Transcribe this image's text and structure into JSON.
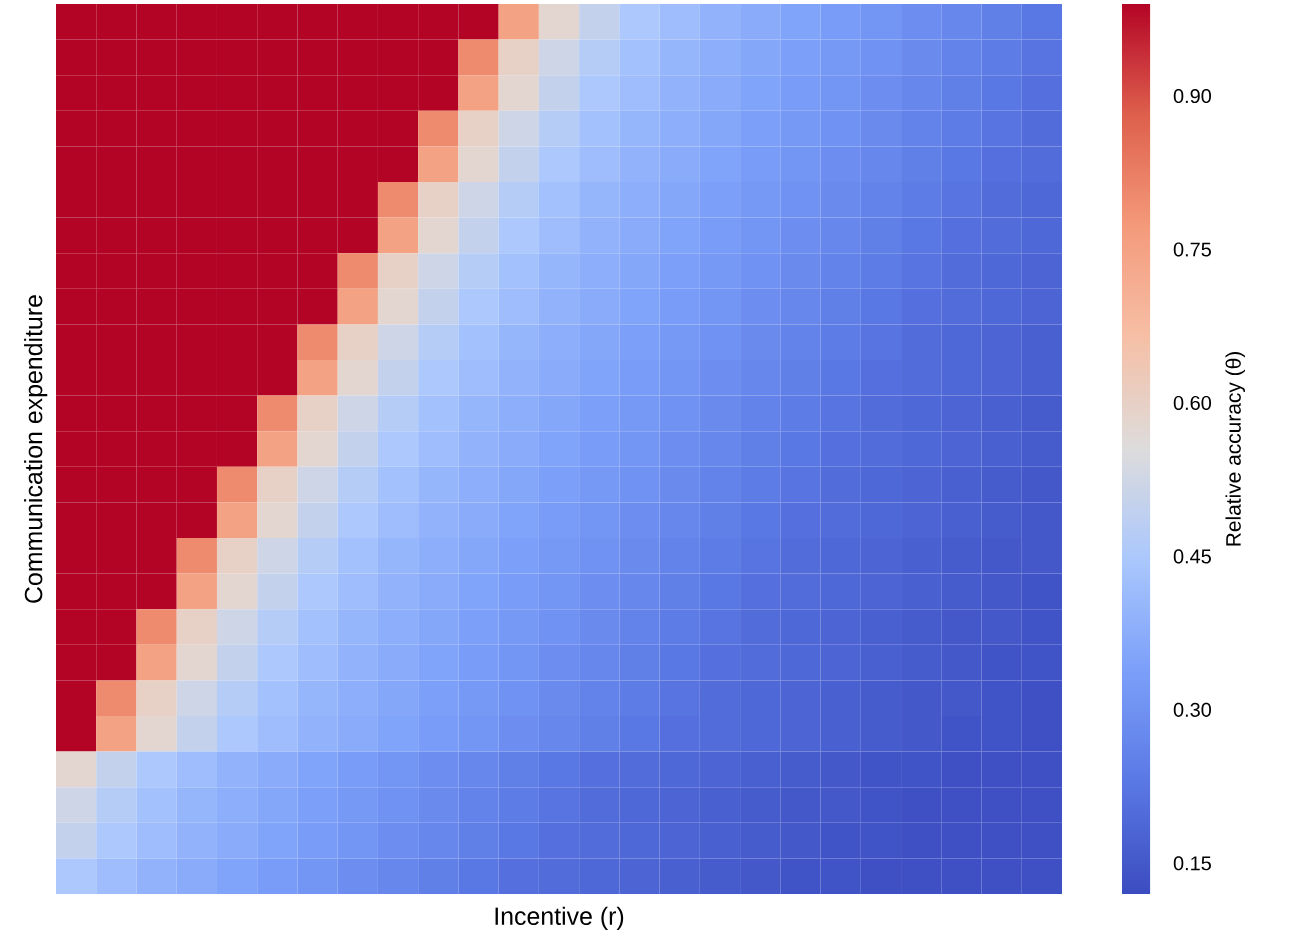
{
  "chart_data": {
    "type": "heatmap",
    "xlabel": "Incentive (r)",
    "ylabel": "Communication expenditure",
    "clabel": "Relative accuracy (θ)",
    "clim": [
      0.12,
      0.99
    ],
    "cticks": [
      {
        "value": 0.15,
        "label": "0.15"
      },
      {
        "value": 0.3,
        "label": "0.30"
      },
      {
        "value": 0.45,
        "label": "0.45"
      },
      {
        "value": 0.6,
        "label": "0.60"
      },
      {
        "value": 0.75,
        "label": "0.75"
      },
      {
        "value": 0.9,
        "label": "0.90"
      }
    ],
    "categories": [
      null,
      null,
      null,
      null,
      null,
      null,
      null,
      null,
      null,
      null,
      null,
      null,
      null,
      null,
      null,
      null,
      null,
      null,
      null,
      null,
      null,
      null,
      null,
      null,
      null
    ],
    "y_categories": [
      null,
      null,
      null,
      null,
      null,
      null,
      null,
      null,
      null,
      null,
      null,
      null,
      null,
      null,
      null,
      null,
      null,
      null,
      null,
      null,
      null,
      null,
      null,
      null,
      null
    ],
    "cells": [
      [
        0.99,
        0.99,
        0.99,
        0.99,
        0.99,
        0.99,
        0.99,
        0.99,
        0.99,
        0.99,
        0.99,
        0.75,
        0.58,
        0.5,
        0.45,
        0.42,
        0.39,
        0.37,
        0.35,
        0.33,
        0.31,
        0.29,
        0.27,
        0.25,
        0.23
      ],
      [
        0.99,
        0.99,
        0.99,
        0.99,
        0.99,
        0.99,
        0.99,
        0.99,
        0.99,
        0.99,
        0.8,
        0.6,
        0.52,
        0.47,
        0.43,
        0.4,
        0.38,
        0.36,
        0.34,
        0.32,
        0.3,
        0.28,
        0.26,
        0.24,
        0.22
      ],
      [
        0.99,
        0.99,
        0.99,
        0.99,
        0.99,
        0.99,
        0.99,
        0.99,
        0.99,
        0.99,
        0.75,
        0.58,
        0.5,
        0.45,
        0.42,
        0.39,
        0.37,
        0.35,
        0.33,
        0.31,
        0.29,
        0.27,
        0.25,
        0.23,
        0.21
      ],
      [
        0.99,
        0.99,
        0.99,
        0.99,
        0.99,
        0.99,
        0.99,
        0.99,
        0.99,
        0.8,
        0.6,
        0.52,
        0.47,
        0.43,
        0.4,
        0.38,
        0.36,
        0.34,
        0.32,
        0.3,
        0.28,
        0.26,
        0.24,
        0.22,
        0.2
      ],
      [
        0.99,
        0.99,
        0.99,
        0.99,
        0.99,
        0.99,
        0.99,
        0.99,
        0.99,
        0.75,
        0.58,
        0.5,
        0.45,
        0.42,
        0.39,
        0.37,
        0.35,
        0.33,
        0.31,
        0.29,
        0.27,
        0.25,
        0.23,
        0.21,
        0.2
      ],
      [
        0.99,
        0.99,
        0.99,
        0.99,
        0.99,
        0.99,
        0.99,
        0.99,
        0.8,
        0.6,
        0.52,
        0.47,
        0.43,
        0.4,
        0.38,
        0.36,
        0.34,
        0.32,
        0.3,
        0.28,
        0.26,
        0.24,
        0.22,
        0.2,
        0.19
      ],
      [
        0.99,
        0.99,
        0.99,
        0.99,
        0.99,
        0.99,
        0.99,
        0.99,
        0.75,
        0.58,
        0.5,
        0.45,
        0.42,
        0.39,
        0.37,
        0.35,
        0.33,
        0.31,
        0.29,
        0.27,
        0.25,
        0.23,
        0.21,
        0.2,
        0.19
      ],
      [
        0.99,
        0.99,
        0.99,
        0.99,
        0.99,
        0.99,
        0.99,
        0.8,
        0.6,
        0.52,
        0.47,
        0.43,
        0.4,
        0.38,
        0.36,
        0.34,
        0.32,
        0.3,
        0.28,
        0.26,
        0.24,
        0.22,
        0.2,
        0.19,
        0.18
      ],
      [
        0.99,
        0.99,
        0.99,
        0.99,
        0.99,
        0.99,
        0.99,
        0.75,
        0.58,
        0.5,
        0.45,
        0.42,
        0.39,
        0.37,
        0.35,
        0.33,
        0.31,
        0.29,
        0.27,
        0.25,
        0.23,
        0.21,
        0.2,
        0.19,
        0.18
      ],
      [
        0.99,
        0.99,
        0.99,
        0.99,
        0.99,
        0.99,
        0.8,
        0.6,
        0.52,
        0.47,
        0.43,
        0.4,
        0.38,
        0.36,
        0.34,
        0.32,
        0.3,
        0.28,
        0.26,
        0.24,
        0.22,
        0.2,
        0.19,
        0.18,
        0.17
      ],
      [
        0.99,
        0.99,
        0.99,
        0.99,
        0.99,
        0.99,
        0.75,
        0.58,
        0.5,
        0.45,
        0.42,
        0.39,
        0.37,
        0.35,
        0.33,
        0.31,
        0.29,
        0.27,
        0.25,
        0.23,
        0.21,
        0.2,
        0.19,
        0.18,
        0.17
      ],
      [
        0.99,
        0.99,
        0.99,
        0.99,
        0.99,
        0.8,
        0.6,
        0.52,
        0.47,
        0.43,
        0.4,
        0.38,
        0.36,
        0.34,
        0.32,
        0.3,
        0.28,
        0.26,
        0.24,
        0.22,
        0.2,
        0.19,
        0.18,
        0.17,
        0.16
      ],
      [
        0.99,
        0.99,
        0.99,
        0.99,
        0.99,
        0.75,
        0.58,
        0.5,
        0.45,
        0.42,
        0.39,
        0.37,
        0.35,
        0.33,
        0.31,
        0.29,
        0.27,
        0.25,
        0.23,
        0.21,
        0.2,
        0.19,
        0.18,
        0.17,
        0.16
      ],
      [
        0.99,
        0.99,
        0.99,
        0.99,
        0.8,
        0.6,
        0.52,
        0.47,
        0.43,
        0.4,
        0.38,
        0.36,
        0.34,
        0.32,
        0.3,
        0.28,
        0.26,
        0.24,
        0.22,
        0.2,
        0.19,
        0.18,
        0.17,
        0.16,
        0.15
      ],
      [
        0.99,
        0.99,
        0.99,
        0.99,
        0.75,
        0.58,
        0.5,
        0.45,
        0.42,
        0.39,
        0.37,
        0.35,
        0.33,
        0.31,
        0.29,
        0.27,
        0.25,
        0.23,
        0.21,
        0.2,
        0.19,
        0.18,
        0.17,
        0.16,
        0.15
      ],
      [
        0.99,
        0.99,
        0.99,
        0.8,
        0.6,
        0.52,
        0.47,
        0.43,
        0.4,
        0.38,
        0.36,
        0.34,
        0.32,
        0.3,
        0.28,
        0.26,
        0.24,
        0.22,
        0.2,
        0.19,
        0.18,
        0.17,
        0.16,
        0.15,
        0.15
      ],
      [
        0.99,
        0.99,
        0.99,
        0.75,
        0.58,
        0.5,
        0.45,
        0.42,
        0.39,
        0.37,
        0.35,
        0.33,
        0.31,
        0.29,
        0.27,
        0.25,
        0.23,
        0.21,
        0.2,
        0.19,
        0.18,
        0.17,
        0.16,
        0.15,
        0.14
      ],
      [
        0.99,
        0.99,
        0.8,
        0.6,
        0.52,
        0.47,
        0.43,
        0.4,
        0.38,
        0.36,
        0.34,
        0.32,
        0.3,
        0.28,
        0.26,
        0.24,
        0.22,
        0.2,
        0.19,
        0.18,
        0.17,
        0.16,
        0.15,
        0.15,
        0.14
      ],
      [
        0.99,
        0.99,
        0.75,
        0.58,
        0.5,
        0.45,
        0.42,
        0.39,
        0.37,
        0.35,
        0.33,
        0.31,
        0.29,
        0.27,
        0.25,
        0.23,
        0.21,
        0.2,
        0.19,
        0.18,
        0.17,
        0.16,
        0.15,
        0.14,
        0.14
      ],
      [
        0.99,
        0.8,
        0.6,
        0.52,
        0.47,
        0.43,
        0.4,
        0.38,
        0.36,
        0.34,
        0.32,
        0.3,
        0.28,
        0.26,
        0.24,
        0.22,
        0.2,
        0.19,
        0.18,
        0.17,
        0.16,
        0.15,
        0.15,
        0.14,
        0.13
      ],
      [
        0.99,
        0.75,
        0.58,
        0.5,
        0.45,
        0.42,
        0.39,
        0.37,
        0.35,
        0.33,
        0.31,
        0.29,
        0.27,
        0.25,
        0.23,
        0.21,
        0.2,
        0.19,
        0.18,
        0.17,
        0.16,
        0.15,
        0.14,
        0.14,
        0.13
      ],
      [
        0.58,
        0.5,
        0.45,
        0.42,
        0.39,
        0.37,
        0.35,
        0.33,
        0.31,
        0.29,
        0.27,
        0.25,
        0.23,
        0.21,
        0.2,
        0.19,
        0.18,
        0.17,
        0.16,
        0.15,
        0.14,
        0.14,
        0.13,
        0.13,
        0.13
      ],
      [
        0.52,
        0.47,
        0.43,
        0.4,
        0.38,
        0.36,
        0.34,
        0.32,
        0.3,
        0.28,
        0.26,
        0.24,
        0.22,
        0.2,
        0.19,
        0.18,
        0.17,
        0.16,
        0.15,
        0.15,
        0.14,
        0.13,
        0.13,
        0.13,
        0.13
      ],
      [
        0.5,
        0.45,
        0.42,
        0.39,
        0.37,
        0.35,
        0.33,
        0.31,
        0.29,
        0.27,
        0.25,
        0.23,
        0.21,
        0.2,
        0.19,
        0.18,
        0.17,
        0.16,
        0.15,
        0.14,
        0.14,
        0.13,
        0.13,
        0.13,
        0.13
      ],
      [
        0.45,
        0.42,
        0.39,
        0.37,
        0.35,
        0.33,
        0.31,
        0.29,
        0.27,
        0.25,
        0.23,
        0.21,
        0.2,
        0.19,
        0.18,
        0.17,
        0.16,
        0.15,
        0.14,
        0.14,
        0.13,
        0.13,
        0.13,
        0.13,
        0.13
      ]
    ]
  }
}
